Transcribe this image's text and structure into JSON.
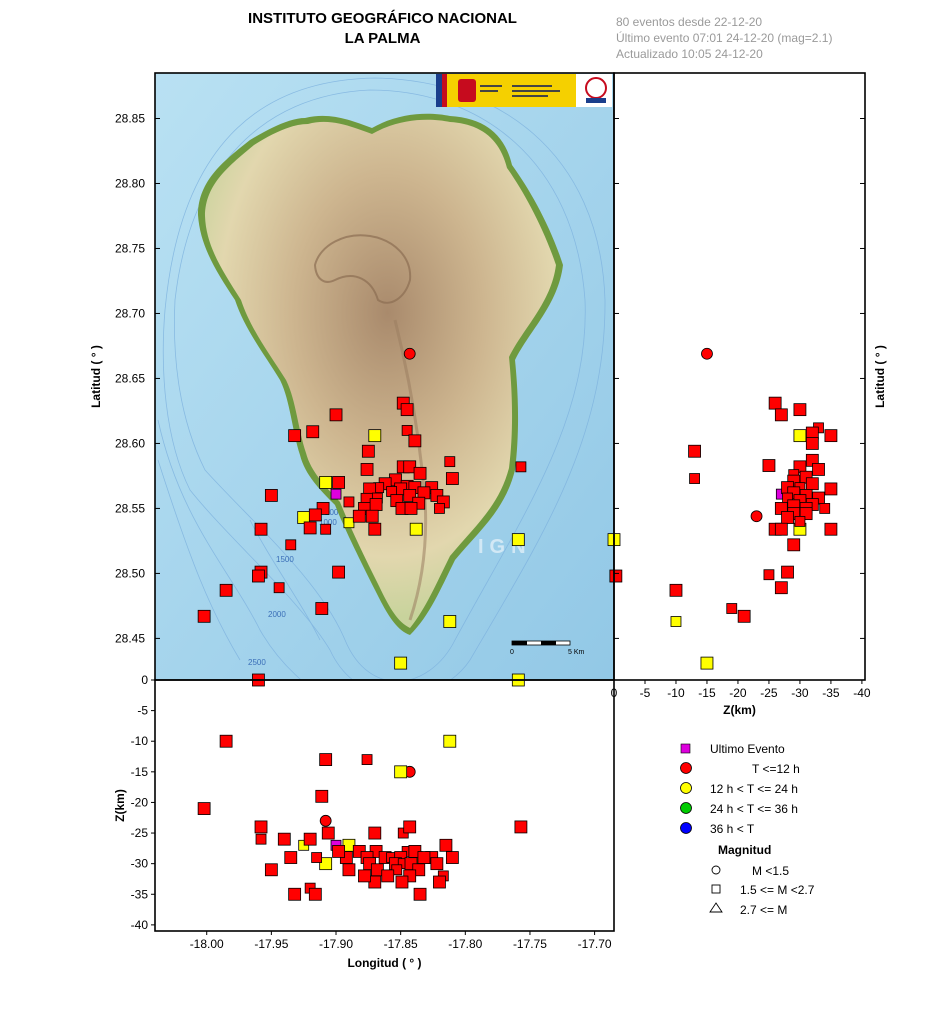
{
  "header": {
    "title_line1": "INSTITUTO GEOGRÁFICO NACIONAL",
    "title_line2": "LA PALMA",
    "info_line1": "80 eventos desde 22-12-20",
    "info_line2": "Último evento 07:01 24-12-20  (mag=2.1)",
    "info_line3": "Actualizado   10:05  24-12-20"
  },
  "map": {
    "watermark": "IGN",
    "scale_label_start": "0",
    "scale_label_end": "5 Km",
    "depth_contours": [
      "200",
      "1000",
      "1500",
      "2000",
      "2500"
    ]
  },
  "legend": {
    "last_event": "Ultimo Evento",
    "t12": "T <=12 h",
    "t24": "12 h  < T <= 24 h",
    "t36": "24 h  < T <= 36 h",
    "tmore": "36 h <  T",
    "magnitude_title": "Magnitud",
    "m_small": "M <1.5",
    "m_mid": "1.5 <= M <2.7",
    "m_big": "2.7 <= M"
  },
  "colors": {
    "red": "#ff0000",
    "yellow": "#ffff00",
    "green": "#00cc00",
    "blue": "#0000ff",
    "magenta": "#dd00dd",
    "sea": "#a9d6ee",
    "land_low": "#e6dcb2",
    "land_high": "#b79a78"
  },
  "chart_data": [
    {
      "type": "scatter",
      "title": "",
      "xlabel": "",
      "ylabel": "Latitud ( ° )",
      "xlim": [
        -18.04,
        -17.685
      ],
      "ylim": [
        28.418,
        28.885
      ],
      "ytick_labels": [
        "28.45",
        "28.50",
        "28.55",
        "28.60",
        "28.65",
        "28.70",
        "28.75",
        "28.80",
        "28.85"
      ],
      "series": [
        {
          "name": "T <=12 h",
          "color": "red",
          "symbol": "circle",
          "points": [
            [
              -17.843,
              28.669
            ]
          ]
        },
        {
          "name": "12 h  < T <= 24 h",
          "color": "yellow",
          "symbol": "square",
          "points": [
            [
              -17.87,
              28.606
            ],
            [
              -17.908,
              28.57
            ],
            [
              -17.925,
              28.543
            ],
            [
              -17.89,
              28.539
            ],
            [
              -17.838,
              28.534
            ],
            [
              -17.759,
              28.526
            ],
            [
              -17.812,
              28.463
            ],
            [
              -17.85,
              28.431
            ]
          ]
        },
        {
          "name": "Ultimo Evento",
          "color": "magenta",
          "symbol": "square",
          "points": [
            [
              -17.9,
              28.561
            ]
          ]
        },
        {
          "name": "36 h <  T",
          "color": "red",
          "symbol": "square",
          "points": [
            [
              -17.848,
              28.631
            ],
            [
              -17.845,
              28.626
            ],
            [
              -17.9,
              28.622
            ],
            [
              -17.845,
              28.61
            ],
            [
              -17.839,
              28.602
            ],
            [
              -17.918,
              28.609
            ],
            [
              -17.932,
              28.606
            ],
            [
              -17.875,
              28.594
            ],
            [
              -17.812,
              28.586
            ],
            [
              -17.848,
              28.582
            ],
            [
              -17.843,
              28.582
            ],
            [
              -17.876,
              28.58
            ],
            [
              -17.835,
              28.577
            ],
            [
              -17.757,
              28.582
            ],
            [
              -17.81,
              28.573
            ],
            [
              -17.854,
              28.572
            ],
            [
              -17.862,
              28.569
            ],
            [
              -17.845,
              28.567
            ],
            [
              -17.867,
              28.566
            ],
            [
              -17.874,
              28.565
            ],
            [
              -17.85,
              28.565
            ],
            [
              -17.839,
              28.566
            ],
            [
              -17.826,
              28.566
            ],
            [
              -17.857,
              28.563
            ],
            [
              -17.843,
              28.56
            ],
            [
              -17.832,
              28.562
            ],
            [
              -17.822,
              28.56
            ],
            [
              -17.876,
              28.557
            ],
            [
              -17.868,
              28.558
            ],
            [
              -17.853,
              28.556
            ],
            [
              -17.836,
              28.554
            ],
            [
              -17.817,
              28.555
            ],
            [
              -17.898,
              28.57
            ],
            [
              -17.89,
              28.555
            ],
            [
              -17.878,
              28.55
            ],
            [
              -17.869,
              28.553
            ],
            [
              -17.849,
              28.55
            ],
            [
              -17.842,
              28.55
            ],
            [
              -17.82,
              28.55
            ],
            [
              -17.882,
              28.544
            ],
            [
              -17.872,
              28.544
            ],
            [
              -17.91,
              28.55
            ],
            [
              -17.916,
              28.545
            ],
            [
              -17.908,
              28.534
            ],
            [
              -17.92,
              28.535
            ],
            [
              -17.87,
              28.534
            ],
            [
              -17.95,
              28.56
            ],
            [
              -17.958,
              28.534
            ],
            [
              -17.935,
              28.522
            ],
            [
              -17.958,
              28.501
            ],
            [
              -17.96,
              28.498
            ],
            [
              -17.898,
              28.501
            ],
            [
              -17.985,
              28.487
            ],
            [
              -17.944,
              28.489
            ],
            [
              -17.911,
              28.473
            ],
            [
              -18.002,
              28.467
            ]
          ]
        }
      ]
    },
    {
      "type": "scatter",
      "title": "",
      "xlabel": "Z(km)",
      "ylabel": "Latitud ( ° )",
      "xlim": [
        0,
        -40.5
      ],
      "ylim": [
        28.418,
        28.885
      ],
      "xtick_labels": [
        "0",
        "-5",
        "-10",
        "-15",
        "-20",
        "-25",
        "-30",
        "-35",
        "-40"
      ],
      "ytick_labels": [
        "28.45",
        "28.50",
        "28.55",
        "28.60",
        "28.65",
        "28.70",
        "28.75",
        "28.80",
        "28.85"
      ],
      "series": [
        {
          "name": "T <=12 h",
          "color": "red",
          "symbol": "circle",
          "points": [
            [
              -15,
              28.669
            ],
            [
              -23,
              28.544
            ]
          ]
        },
        {
          "name": "12 h  < T <= 24 h",
          "color": "yellow",
          "symbol": "square",
          "points": [
            [
              0,
              28.526
            ],
            [
              -30,
              28.606
            ],
            [
              -30,
              28.534
            ],
            [
              -10,
              28.463
            ],
            [
              -15,
              28.431
            ]
          ]
        },
        {
          "name": "Ultimo Evento",
          "color": "magenta",
          "symbol": "square",
          "points": [
            [
              -27,
              28.561
            ]
          ]
        },
        {
          "name": "36 h <  T",
          "color": "red",
          "symbol": "square",
          "points": [
            [
              -26,
              28.631
            ],
            [
              -30,
              28.626
            ],
            [
              -27,
              28.622
            ],
            [
              -33,
              28.612
            ],
            [
              -32,
              28.608
            ],
            [
              -35,
              28.606
            ],
            [
              -32,
              28.6
            ],
            [
              -13,
              28.594
            ],
            [
              -13,
              28.573
            ],
            [
              -32,
              28.587
            ],
            [
              -25,
              28.583
            ],
            [
              -30,
              28.582
            ],
            [
              -33,
              28.58
            ],
            [
              -29,
              28.576
            ],
            [
              -31,
              28.574
            ],
            [
              -29,
              28.571
            ],
            [
              -32,
              28.569
            ],
            [
              -28,
              28.566
            ],
            [
              -30,
              28.566
            ],
            [
              -35,
              28.565
            ],
            [
              -29,
              28.562
            ],
            [
              -31,
              28.56
            ],
            [
              -33,
              28.558
            ],
            [
              -28,
              28.558
            ],
            [
              -30,
              28.556
            ],
            [
              -32,
              28.553
            ],
            [
              -29,
              28.552
            ],
            [
              -31,
              28.55
            ],
            [
              -34,
              28.55
            ],
            [
              -27,
              28.55
            ],
            [
              -29,
              28.546
            ],
            [
              -31,
              28.546
            ],
            [
              -28,
              28.543
            ],
            [
              -30,
              28.54
            ],
            [
              -26,
              28.534
            ],
            [
              -27,
              28.534
            ],
            [
              -35,
              28.534
            ],
            [
              -29,
              28.522
            ],
            [
              -25,
              28.499
            ],
            [
              -28,
              28.501
            ],
            [
              -27,
              28.489
            ],
            [
              -10,
              28.487
            ],
            [
              -0.3,
              28.498
            ],
            [
              -19,
              28.473
            ],
            [
              -21,
              28.467
            ]
          ]
        }
      ]
    },
    {
      "type": "scatter",
      "title": "",
      "xlabel": "Longitud ( ° )",
      "ylabel": "Z(km)",
      "xlim": [
        -18.04,
        -17.685
      ],
      "ylim": [
        -41,
        0
      ],
      "xtick_labels": [
        "-18.00",
        "-17.95",
        "-17.90",
        "-17.85",
        "-17.80",
        "-17.75",
        "-17.70"
      ],
      "ytick_labels": [
        "0",
        "-5",
        "-10",
        "-15",
        "-20",
        "-25",
        "-30",
        "-35",
        "-40"
      ],
      "series": [
        {
          "name": "T <=12 h",
          "color": "red",
          "symbol": "circle",
          "points": [
            [
              -17.843,
              -15
            ],
            [
              -17.908,
              -23
            ]
          ]
        },
        {
          "name": "12 h  < T <= 24 h",
          "color": "yellow",
          "symbol": "square",
          "points": [
            [
              -17.759,
              0
            ],
            [
              -17.812,
              -10
            ],
            [
              -17.85,
              -15
            ],
            [
              -17.925,
              -27
            ],
            [
              -17.89,
              -27
            ],
            [
              -17.908,
              -30
            ],
            [
              -17.838,
              -29
            ]
          ]
        },
        {
          "name": "Ultimo Evento",
          "color": "magenta",
          "symbol": "square",
          "points": [
            [
              -17.9,
              -27
            ]
          ]
        },
        {
          "name": "36 h <  T",
          "color": "red",
          "symbol": "square",
          "points": [
            [
              -17.96,
              0
            ],
            [
              -17.985,
              -10
            ],
            [
              -17.908,
              -13
            ],
            [
              -17.876,
              -13
            ],
            [
              -17.911,
              -19
            ],
            [
              -18.002,
              -21
            ],
            [
              -17.958,
              -24
            ],
            [
              -17.757,
              -24
            ],
            [
              -17.958,
              -26
            ],
            [
              -17.94,
              -26
            ],
            [
              -17.92,
              -26
            ],
            [
              -17.906,
              -25
            ],
            [
              -17.87,
              -25
            ],
            [
              -17.848,
              -25
            ],
            [
              -17.843,
              -24
            ],
            [
              -17.815,
              -27
            ],
            [
              -17.882,
              -28
            ],
            [
              -17.869,
              -28
            ],
            [
              -17.845,
              -28
            ],
            [
              -17.839,
              -28
            ],
            [
              -17.826,
              -29
            ],
            [
              -17.876,
              -29
            ],
            [
              -17.862,
              -29
            ],
            [
              -17.857,
              -29
            ],
            [
              -17.85,
              -29
            ],
            [
              -17.832,
              -29
            ],
            [
              -17.81,
              -29
            ],
            [
              -17.935,
              -29
            ],
            [
              -17.915,
              -29
            ],
            [
              -17.892,
              -29
            ],
            [
              -17.898,
              -28
            ],
            [
              -17.874,
              -30
            ],
            [
              -17.854,
              -30
            ],
            [
              -17.848,
              -30
            ],
            [
              -17.842,
              -30
            ],
            [
              -17.836,
              -31
            ],
            [
              -17.822,
              -30
            ],
            [
              -17.868,
              -31
            ],
            [
              -17.853,
              -31
            ],
            [
              -17.89,
              -31
            ],
            [
              -17.95,
              -31
            ],
            [
              -17.843,
              -32
            ],
            [
              -17.86,
              -32
            ],
            [
              -17.817,
              -32
            ],
            [
              -17.87,
              -33
            ],
            [
              -17.849,
              -33
            ],
            [
              -17.82,
              -33
            ],
            [
              -17.878,
              -32
            ],
            [
              -17.92,
              -34
            ],
            [
              -17.932,
              -35
            ],
            [
              -17.916,
              -35
            ],
            [
              -17.835,
              -35
            ]
          ]
        }
      ]
    }
  ]
}
